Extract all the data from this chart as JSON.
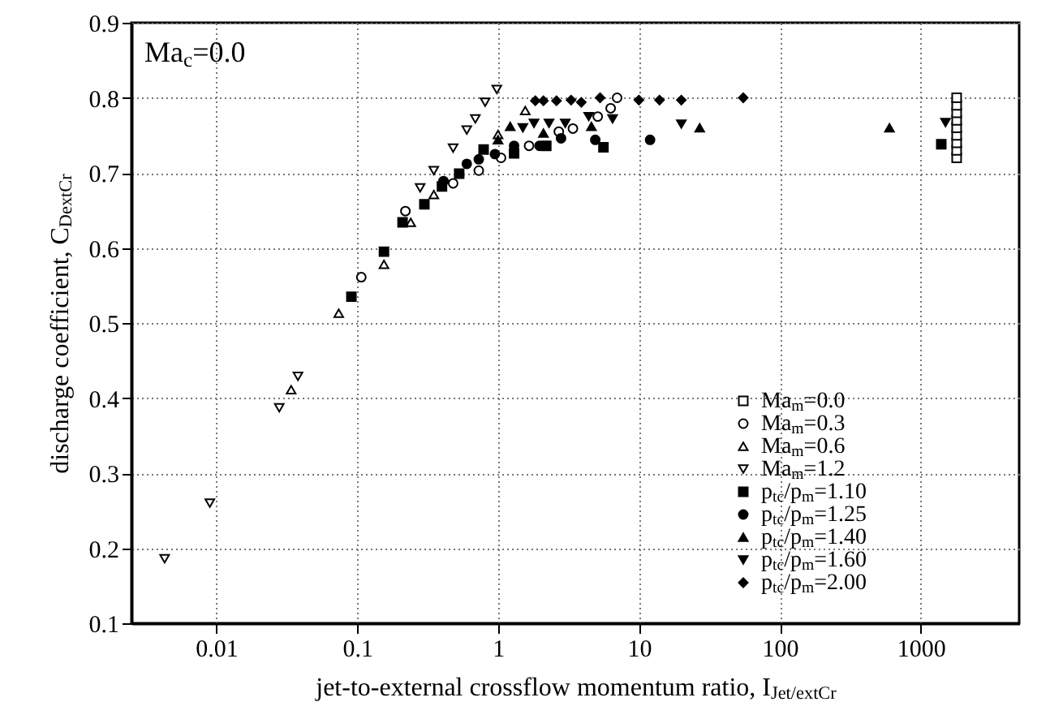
{
  "chart_data": {
    "type": "scatter",
    "xlabel": "jet-to-external crossflow momentum ratio, I$_{Jet/extCr}$",
    "ylabel": "discharge coefficient, C$_{DextCr}$",
    "annotations": [
      "Ma$_{c}$=0.0"
    ],
    "log": "x",
    "grid": true,
    "legend": "bottom right",
    "xlim": [
      0.0025,
      5000
    ],
    "xticks": [
      0.01,
      0.1,
      1,
      10,
      100,
      1000
    ],
    "ylim": [
      0.1,
      0.9
    ],
    "yticks": [
      0.1,
      0.2,
      0.3,
      0.4,
      0.5,
      0.6,
      0.7,
      0.8,
      0.9
    ],
    "series": [
      {
        "name": "Ma$_{m}$=0.0",
        "color": "#000000",
        "x": [
          1800,
          1800,
          1800,
          1800,
          1800,
          1800,
          1800,
          1800,
          1800
        ],
        "values": [
          0.72,
          0.73,
          0.74,
          0.75,
          0.76,
          0.77,
          0.78,
          0.79,
          0.8
        ]
      },
      {
        "name": "Ma$_{m}$=0.3",
        "color": "#000000",
        "x": [
          0.107,
          0.22,
          0.48,
          0.73,
          1.05,
          1.66,
          2.7,
          3.4,
          5.1,
          6.3,
          7
        ],
        "values": [
          0.561,
          0.649,
          0.686,
          0.703,
          0.72,
          0.736,
          0.755,
          0.759,
          0.775,
          0.786,
          0.8
        ]
      },
      {
        "name": "Ma$_{m}$=0.6",
        "color": "#000000",
        "x": [
          0.034,
          0.074,
          0.155,
          0.24,
          0.35,
          1.0,
          1.56
        ],
        "values": [
          0.411,
          0.513,
          0.578,
          0.634,
          0.671,
          0.751,
          0.783
        ]
      },
      {
        "name": "Ma$_{m}$=1.2",
        "color": "#000000",
        "x": [
          0.0043,
          0.009,
          0.028,
          0.038,
          0.28,
          0.35,
          0.48,
          0.6,
          0.69,
          0.81,
          0.98
        ],
        "values": [
          0.186,
          0.26,
          0.387,
          0.429,
          0.68,
          0.703,
          0.733,
          0.757,
          0.772,
          0.794,
          0.811
        ]
      },
      {
        "name": "p$_{tc}$/p$_{m}$=1.10",
        "color": "#000000",
        "x": [
          0.091,
          0.155,
          0.21,
          0.3,
          0.4,
          0.53,
          0.79,
          1.3,
          2.2,
          5.6,
          1400
        ],
        "values": [
          0.535,
          0.595,
          0.634,
          0.658,
          0.682,
          0.699,
          0.731,
          0.726,
          0.736,
          0.734,
          0.738
        ]
      },
      {
        "name": "p$_{tc}$/p$_{m}$=1.25",
        "color": "#000000",
        "x": [
          0.41,
          0.6,
          0.73,
          0.95,
          1.3,
          1.97,
          2.8,
          4.9,
          12
        ],
        "values": [
          0.689,
          0.712,
          0.718,
          0.725,
          0.736,
          0.736,
          0.746,
          0.744,
          0.744
        ]
      },
      {
        "name": "p$_{tc}$/p$_{m}$=1.40",
        "color": "#000000",
        "x": [
          1.0,
          1.22,
          2.1,
          4.6,
          27,
          600
        ],
        "values": [
          0.744,
          0.762,
          0.753,
          0.762,
          0.76,
          0.76
        ]
      },
      {
        "name": "p$_{tc}$/p$_{m}$=1.60",
        "color": "#000000",
        "x": [
          1.5,
          1.8,
          2.3,
          3.0,
          4.4,
          6.5,
          20,
          1500
        ],
        "values": [
          0.76,
          0.766,
          0.766,
          0.766,
          0.775,
          0.772,
          0.765,
          0.767
        ]
      },
      {
        "name": "p$_{tc}$/p$_{m}$=2.00",
        "color": "#000000",
        "x": [
          1.84,
          2.1,
          2.6,
          3.3,
          3.9,
          5.3,
          10,
          14,
          20,
          55
        ],
        "values": [
          0.796,
          0.796,
          0.796,
          0.797,
          0.794,
          0.8,
          0.797,
          0.797,
          0.797,
          0.8
        ]
      }
    ]
  }
}
